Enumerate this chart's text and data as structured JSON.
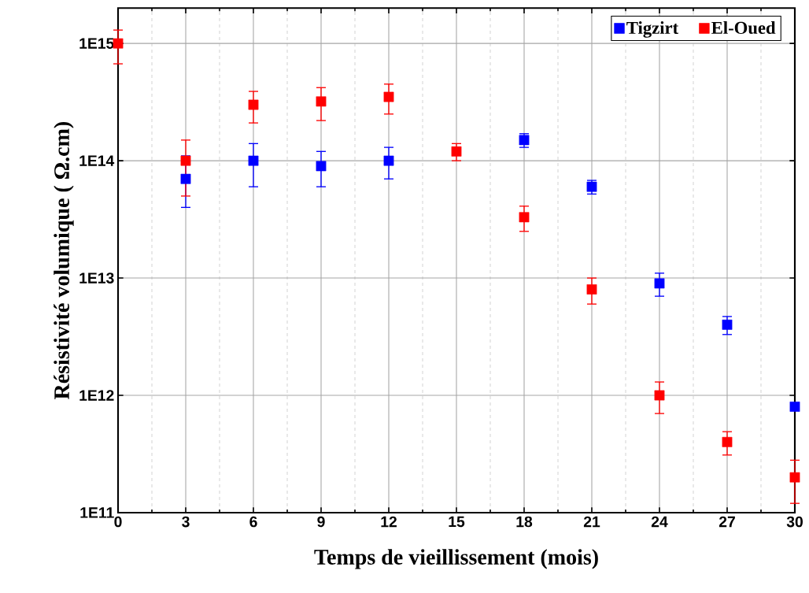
{
  "chart_data": {
    "type": "scatter",
    "xlabel": "Temps de vieillissement (mois)",
    "ylabel": "Résistivité volumique ( Ω.cm)",
    "xlim": [
      0,
      30
    ],
    "xticks": [
      0,
      3,
      6,
      9,
      12,
      15,
      18,
      21,
      24,
      27,
      30
    ],
    "ylim": [
      100000000000.0,
      2000000000000000.0
    ],
    "log": "y",
    "yticks": [
      {
        "value": 100000000000.0,
        "label": "1E11"
      },
      {
        "value": 1000000000000.0,
        "label": "1E12"
      },
      {
        "value": 10000000000000.0,
        "label": "1E13"
      },
      {
        "value": 100000000000000.0,
        "label": "1E14"
      },
      {
        "value": 1000000000000000.0,
        "label": "1E15"
      }
    ],
    "grid": true,
    "legend": "top right",
    "marker": "square",
    "series": [
      {
        "name": "Tigzirt",
        "color": "#0000ff",
        "x": [
          3,
          6,
          9,
          12,
          18,
          21,
          24,
          27,
          30
        ],
        "values": [
          70000000000000.0,
          100000000000000.0,
          90000000000000.0,
          100000000000000.0,
          150000000000000.0,
          60000000000000.0,
          9000000000000.0,
          4000000000000.0,
          800000000000.0
        ],
        "errors": [
          [
            40000000000000.0,
            110000000000000.0
          ],
          [
            60000000000000.0,
            140000000000000.0
          ],
          [
            60000000000000.0,
            120000000000000.0
          ],
          [
            70000000000000.0,
            130000000000000.0
          ],
          [
            130000000000000.0,
            170000000000000.0
          ],
          [
            52000000000000.0,
            68000000000000.0
          ],
          [
            7000000000000.0,
            11000000000000.0
          ],
          [
            3300000000000.0,
            4700000000000.0
          ],
          null
        ]
      },
      {
        "name": "El-Oued",
        "color": "#ff0000",
        "x": [
          0,
          3,
          6,
          9,
          12,
          15,
          18,
          21,
          24,
          27,
          30
        ],
        "values": [
          1000000000000000.0,
          100000000000000.0,
          300000000000000.0,
          320000000000000.0,
          350000000000000.0,
          120000000000000.0,
          33000000000000.0,
          8000000000000.0,
          1000000000000.0,
          400000000000.0,
          200000000000.0
        ],
        "errors": [
          [
            670000000000000.0,
            1300000000000000.0
          ],
          [
            50000000000000.0,
            150000000000000.0
          ],
          [
            210000000000000.0,
            390000000000000.0
          ],
          [
            220000000000000.0,
            420000000000000.0
          ],
          [
            250000000000000.0,
            450000000000000.0
          ],
          [
            100000000000000.0,
            140000000000000.0
          ],
          [
            25000000000000.0,
            41000000000000.0
          ],
          [
            6000000000000.0,
            10000000000000.0
          ],
          [
            700000000000.0,
            1300000000000.0
          ],
          [
            310000000000.0,
            490000000000.0
          ],
          [
            120000000000.0,
            280000000000.0
          ]
        ]
      }
    ]
  }
}
